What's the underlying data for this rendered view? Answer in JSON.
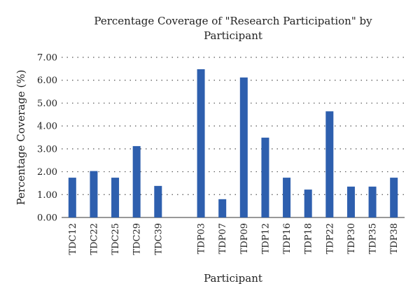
{
  "chart_data": {
    "type": "bar",
    "title_lines": [
      "Percentage Coverage of \"Research Participation\" by",
      "Participant"
    ],
    "xlabel": "Participant",
    "ylabel": "Percentage Coverage (%)",
    "ylim": [
      0,
      7
    ],
    "yticks": [
      "0.00",
      "1.00",
      "2.00",
      "3.00",
      "4.00",
      "5.00",
      "6.00",
      "7.00"
    ],
    "grid": "horizontal-dotted",
    "color": "#2e5fae",
    "categories": [
      "TDC12",
      "TDC22",
      "TDC25",
      "TDC29",
      "TDC39",
      "",
      "TDP03",
      "TDP07",
      "TDP09",
      "TDP12",
      "TDP16",
      "TDP18",
      "TDP22",
      "TDP30",
      "TDP35",
      "TDP38"
    ],
    "values": [
      1.74,
      2.03,
      1.74,
      3.12,
      1.38,
      null,
      6.48,
      0.8,
      6.12,
      3.49,
      1.74,
      1.22,
      4.64,
      1.35,
      1.35,
      1.74
    ]
  }
}
